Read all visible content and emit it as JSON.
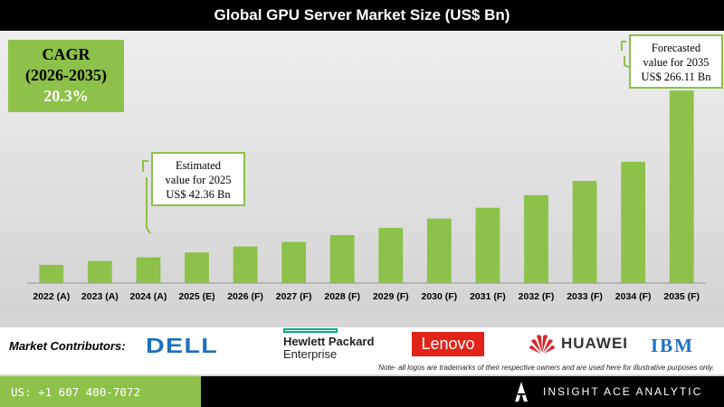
{
  "title": "Global GPU Server Market Size (US$ Bn)",
  "cagr": {
    "label": "CAGR",
    "period": "(2026-2035)",
    "value": "20.3%"
  },
  "callouts": {
    "c2025": {
      "line1": "Estimated",
      "line2": "value for 2025",
      "line3": "US$ 42.36 Bn"
    },
    "c2035": {
      "line1": "Forecasted",
      "line2": "value for 2035",
      "line3": "US$ 266.11 Bn"
    }
  },
  "chart_data": {
    "type": "bar",
    "title": "Global GPU Server Market Size (US$ Bn)",
    "categories": [
      "2022 (A)",
      "2023 (A)",
      "2024 (A)",
      "2025 (E)",
      "2026 (F)",
      "2027 (F)",
      "2028 (F)",
      "2029 (F)",
      "2030 (F)",
      "2031 (F)",
      "2032 (F)",
      "2033 (F)",
      "2034 (F)",
      "2035 (F)"
    ],
    "values": [
      25.2,
      30.5,
      35.7,
      42.36,
      50.6,
      56.9,
      66.2,
      76.3,
      89.2,
      104.1,
      121.5,
      141.2,
      167.7,
      266.11
    ],
    "ylim": [
      0,
      270
    ],
    "bar_color": "#8dc14a",
    "grid": false,
    "xlabel": "",
    "ylabel": ""
  },
  "contributors": {
    "label": "Market Contributors:",
    "dell": "DELL",
    "hpe_line1": "Hewlett Packard",
    "hpe_line2": "Enterprise",
    "lenovo": "Lenovo",
    "huawei": "HUAWEI",
    "ibm": "IBM",
    "note": "Note- all logos are trademarks of their respective owners and are used here for illustrative purposes only."
  },
  "footer": {
    "phone": "US: +1 607 400-7072",
    "brand": "INSIGHT ACE ANALYTIC"
  }
}
